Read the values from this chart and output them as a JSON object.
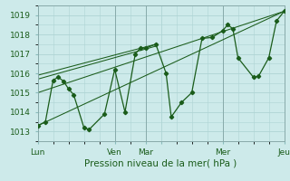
{
  "background_color": "#cdeaea",
  "grid_color": "#aed4d4",
  "line_color": "#1a5c1a",
  "xlabel": "Pression niveau de la mer( hPa )",
  "xlim": [
    0,
    96
  ],
  "ylim": [
    1012.5,
    1019.5
  ],
  "yticks": [
    1013,
    1014,
    1015,
    1016,
    1017,
    1018,
    1019
  ],
  "xtick_positions": [
    0,
    30,
    42,
    48,
    72,
    96
  ],
  "xtick_labels": [
    "Lun",
    "Ven",
    "Mar",
    "",
    "Mer",
    "Jeu"
  ],
  "vlines": [
    0,
    30,
    42,
    72,
    96
  ],
  "series": [
    [
      0,
      1013.3
    ],
    [
      3,
      1013.5
    ],
    [
      6,
      1015.65
    ],
    [
      8,
      1015.8
    ],
    [
      10,
      1015.6
    ],
    [
      12,
      1015.2
    ],
    [
      14,
      1014.9
    ],
    [
      18,
      1013.2
    ],
    [
      20,
      1013.1
    ],
    [
      26,
      1013.9
    ],
    [
      30,
      1016.2
    ],
    [
      34,
      1014.0
    ],
    [
      38,
      1017.0
    ],
    [
      40,
      1017.3
    ],
    [
      42,
      1017.3
    ],
    [
      46,
      1017.5
    ],
    [
      50,
      1016.0
    ],
    [
      52,
      1013.75
    ],
    [
      56,
      1014.5
    ],
    [
      60,
      1015.0
    ],
    [
      64,
      1017.8
    ],
    [
      68,
      1017.85
    ],
    [
      72,
      1018.2
    ],
    [
      74,
      1018.5
    ],
    [
      76,
      1018.3
    ],
    [
      78,
      1016.8
    ],
    [
      84,
      1015.8
    ],
    [
      86,
      1015.85
    ],
    [
      90,
      1016.8
    ],
    [
      93,
      1018.7
    ],
    [
      96,
      1019.2
    ]
  ],
  "envelope_lines": [
    {
      "x0": 0,
      "y0": 1013.3,
      "x1": 96,
      "y1": 1019.2
    },
    {
      "x0": 0,
      "y0": 1015.0,
      "x1": 96,
      "y1": 1019.2
    },
    {
      "x0": 0,
      "y0": 1015.7,
      "x1": 46,
      "y1": 1017.4
    },
    {
      "x0": 0,
      "y0": 1015.9,
      "x1": 46,
      "y1": 1017.5
    }
  ]
}
